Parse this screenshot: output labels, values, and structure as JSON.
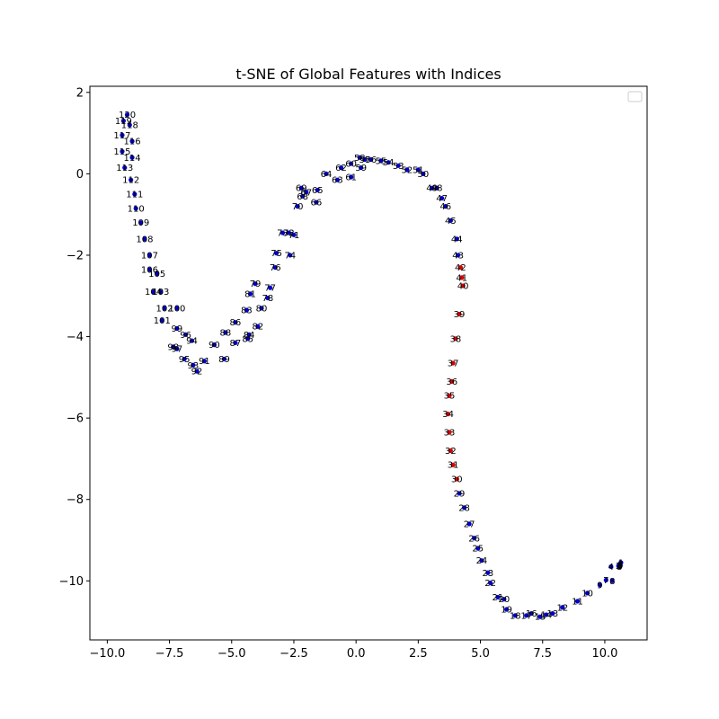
{
  "chart_data": {
    "type": "scatter",
    "title": "t-SNE of Global Features with Indices",
    "xlabel": "",
    "ylabel": "",
    "xlim": [
      -10.7,
      11.7
    ],
    "ylim": [
      -11.45,
      2.15
    ],
    "xticks": [
      -10.0,
      -7.5,
      -5.0,
      -2.5,
      0.0,
      2.5,
      5.0,
      7.5,
      10.0
    ],
    "xtick_labels": [
      "−10.0",
      "−7.5",
      "−5.0",
      "−2.5",
      "0.0",
      "2.5",
      "5.0",
      "7.5",
      "10.0"
    ],
    "yticks": [
      2,
      0,
      -2,
      -4,
      -6,
      -8,
      -10
    ],
    "ytick_labels": [
      "2",
      "0",
      "−2",
      "−4",
      "−6",
      "−8",
      "−10"
    ],
    "grid": false,
    "legend": {
      "placement": "top-right",
      "entries": []
    },
    "colors": {
      "normal": "#0000cc",
      "highlight": "#dd0000"
    },
    "series": [
      {
        "points": [
          [
            10.65,
            -9.55,
            "1"
          ],
          [
            10.55,
            -9.63,
            "2"
          ],
          [
            10.62,
            -9.59,
            "3"
          ],
          [
            10.25,
            -9.65,
            "4"
          ],
          [
            10.6,
            -9.65,
            "5"
          ],
          [
            10.62,
            -9.62,
            "6"
          ],
          [
            10.05,
            -9.98,
            "7"
          ],
          [
            10.3,
            -10.0,
            "8"
          ],
          [
            9.8,
            -10.1,
            "9"
          ],
          [
            9.3,
            -10.3,
            "10"
          ],
          [
            8.9,
            -10.5,
            "11"
          ],
          [
            8.3,
            -10.65,
            "12"
          ],
          [
            7.9,
            -10.8,
            "13"
          ],
          [
            7.65,
            -10.83,
            "14"
          ],
          [
            7.4,
            -10.88,
            "15"
          ],
          [
            7.05,
            -10.8,
            "16"
          ],
          [
            6.85,
            -10.85,
            "17"
          ],
          [
            6.4,
            -10.85,
            "18"
          ],
          [
            6.05,
            -10.7,
            "19"
          ],
          [
            5.95,
            -10.45,
            "20"
          ],
          [
            5.7,
            -10.4,
            "21"
          ],
          [
            5.4,
            -10.05,
            "22"
          ],
          [
            5.3,
            -9.8,
            "23"
          ],
          [
            5.05,
            -9.5,
            "24"
          ],
          [
            4.9,
            -9.2,
            "25"
          ],
          [
            4.75,
            -8.95,
            "26"
          ],
          [
            4.55,
            -8.6,
            "27"
          ],
          [
            4.35,
            -8.2,
            "28"
          ],
          [
            4.15,
            -7.85,
            "29"
          ],
          [
            4.05,
            -7.5,
            "30"
          ],
          [
            3.9,
            -7.15,
            "31"
          ],
          [
            3.8,
            -6.8,
            "32"
          ],
          [
            3.75,
            -6.35,
            "33"
          ],
          [
            3.7,
            -5.9,
            "34"
          ],
          [
            3.75,
            -5.45,
            "35"
          ],
          [
            3.85,
            -5.1,
            "36"
          ],
          [
            3.9,
            -4.65,
            "37"
          ],
          [
            4.0,
            -4.05,
            "38"
          ],
          [
            4.15,
            -3.45,
            "39"
          ],
          [
            4.3,
            -2.75,
            "40"
          ],
          [
            4.25,
            -2.55,
            "41"
          ],
          [
            4.2,
            -2.3,
            "42"
          ],
          [
            4.1,
            -2.0,
            "43"
          ],
          [
            4.05,
            -1.6,
            "44"
          ],
          [
            3.8,
            -1.15,
            "45"
          ],
          [
            3.6,
            -0.8,
            "46"
          ],
          [
            3.45,
            -0.6,
            "47"
          ],
          [
            3.25,
            -0.35,
            "48"
          ],
          [
            3.05,
            -0.35,
            "49"
          ],
          [
            2.7,
            0.0,
            "50"
          ],
          [
            2.5,
            0.1,
            "51"
          ],
          [
            2.05,
            0.1,
            "52"
          ],
          [
            1.7,
            0.2,
            "53"
          ],
          [
            1.3,
            0.28,
            "54"
          ],
          [
            1.0,
            0.32,
            "55"
          ],
          [
            0.6,
            0.35,
            "56"
          ],
          [
            0.35,
            0.35,
            "57"
          ],
          [
            0.15,
            0.4,
            "58"
          ],
          [
            0.2,
            0.15,
            "59"
          ],
          [
            -0.2,
            0.25,
            "60"
          ],
          [
            -0.2,
            -0.08,
            "61"
          ],
          [
            -0.6,
            0.15,
            "62"
          ],
          [
            -0.75,
            -0.15,
            "63"
          ],
          [
            -1.2,
            0.0,
            "64"
          ],
          [
            -1.55,
            -0.4,
            "65"
          ],
          [
            -1.6,
            -0.7,
            "66"
          ],
          [
            -2.0,
            -0.45,
            "67"
          ],
          [
            -2.15,
            -0.55,
            "68"
          ],
          [
            -2.2,
            -0.35,
            "69"
          ],
          [
            -2.35,
            -0.8,
            "70"
          ],
          [
            -2.5,
            -1.5,
            "71"
          ],
          [
            -2.7,
            -1.45,
            "72"
          ],
          [
            -2.95,
            -1.45,
            "73"
          ],
          [
            -2.65,
            -2.0,
            "74"
          ],
          [
            -3.2,
            -1.95,
            "75"
          ],
          [
            -3.25,
            -2.3,
            "76"
          ],
          [
            -3.45,
            -2.8,
            "77"
          ],
          [
            -3.55,
            -3.05,
            "78"
          ],
          [
            -4.05,
            -2.7,
            "79"
          ],
          [
            -3.8,
            -3.3,
            "80"
          ],
          [
            -4.25,
            -2.95,
            "81"
          ],
          [
            -3.95,
            -3.75,
            "82"
          ],
          [
            -4.4,
            -3.35,
            "83"
          ],
          [
            -4.3,
            -3.95,
            "84"
          ],
          [
            -4.35,
            -4.05,
            "85"
          ],
          [
            -4.85,
            -3.65,
            "86"
          ],
          [
            -4.85,
            -4.15,
            "87"
          ],
          [
            -5.25,
            -3.9,
            "88"
          ],
          [
            -5.3,
            -4.55,
            "89"
          ],
          [
            -5.7,
            -4.2,
            "90"
          ],
          [
            -6.1,
            -4.6,
            "91"
          ],
          [
            -6.4,
            -4.85,
            "92"
          ],
          [
            -6.55,
            -4.7,
            "93"
          ],
          [
            -6.6,
            -4.1,
            "94"
          ],
          [
            -6.9,
            -4.55,
            "95"
          ],
          [
            -6.85,
            -3.95,
            "96"
          ],
          [
            -7.2,
            -4.3,
            "97"
          ],
          [
            -7.35,
            -4.25,
            "98"
          ],
          [
            -7.2,
            -3.8,
            "99"
          ],
          [
            -7.2,
            -3.3,
            "100"
          ],
          [
            -7.8,
            -3.6,
            "101"
          ],
          [
            -7.7,
            -3.3,
            "102"
          ],
          [
            -7.85,
            -2.9,
            "103"
          ],
          [
            -8.15,
            -2.9,
            "104"
          ],
          [
            -8.0,
            -2.45,
            "105"
          ],
          [
            -8.3,
            -2.35,
            "106"
          ],
          [
            -8.3,
            -2.0,
            "107"
          ],
          [
            -8.5,
            -1.6,
            "108"
          ],
          [
            -8.65,
            -1.2,
            "109"
          ],
          [
            -8.85,
            -0.85,
            "110"
          ],
          [
            -8.9,
            -0.5,
            "111"
          ],
          [
            -9.05,
            -0.15,
            "112"
          ],
          [
            -9.3,
            0.15,
            "113"
          ],
          [
            -9.0,
            0.4,
            "114"
          ],
          [
            -9.4,
            0.55,
            "115"
          ],
          [
            -9.0,
            0.8,
            "116"
          ],
          [
            -9.4,
            0.95,
            "117"
          ],
          [
            -9.1,
            1.2,
            "118"
          ],
          [
            -9.35,
            1.3,
            "119"
          ],
          [
            -9.2,
            1.45,
            "120"
          ]
        ],
        "highlight_indices": [
          "30",
          "31",
          "32",
          "33",
          "34",
          "35",
          "36",
          "37",
          "38",
          "39",
          "40",
          "41",
          "42"
        ]
      }
    ]
  }
}
